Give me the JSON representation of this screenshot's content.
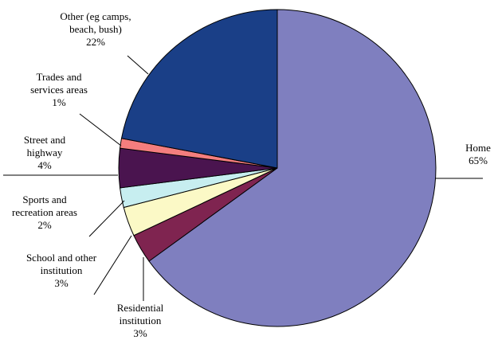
{
  "chart_data": {
    "type": "pie",
    "start_angle_deg": 0,
    "direction": "clockwise",
    "slices": [
      {
        "name": "Home",
        "label_lines": [
          "Home"
        ],
        "value": 65,
        "value_label": "65%",
        "color": "#7f7fbf"
      },
      {
        "name": "Residential institution",
        "label_lines": [
          "Residential",
          "institution"
        ],
        "value": 3,
        "value_label": "3%",
        "color": "#7f2450"
      },
      {
        "name": "School and other institution",
        "label_lines": [
          "School and other",
          "institution"
        ],
        "value": 3,
        "value_label": "3%",
        "color": "#fbf9c6"
      },
      {
        "name": "Sports and recreation areas",
        "label_lines": [
          "Sports and",
          "recreation areas"
        ],
        "value": 2,
        "value_label": "2%",
        "color": "#c7eef0"
      },
      {
        "name": "Street and highway",
        "label_lines": [
          "Street and",
          "highway"
        ],
        "value": 4,
        "value_label": "4%",
        "color": "#4a144f"
      },
      {
        "name": "Trades and services areas",
        "label_lines": [
          "Trades and",
          "services areas"
        ],
        "value": 1,
        "value_label": "1%",
        "color": "#f47e7e"
      },
      {
        "name": "Other (eg camps, beach, bush)",
        "label_lines": [
          "Other (eg camps,",
          "beach, bush)"
        ],
        "value": 22,
        "value_label": "22%",
        "color": "#1a3f87"
      }
    ]
  }
}
